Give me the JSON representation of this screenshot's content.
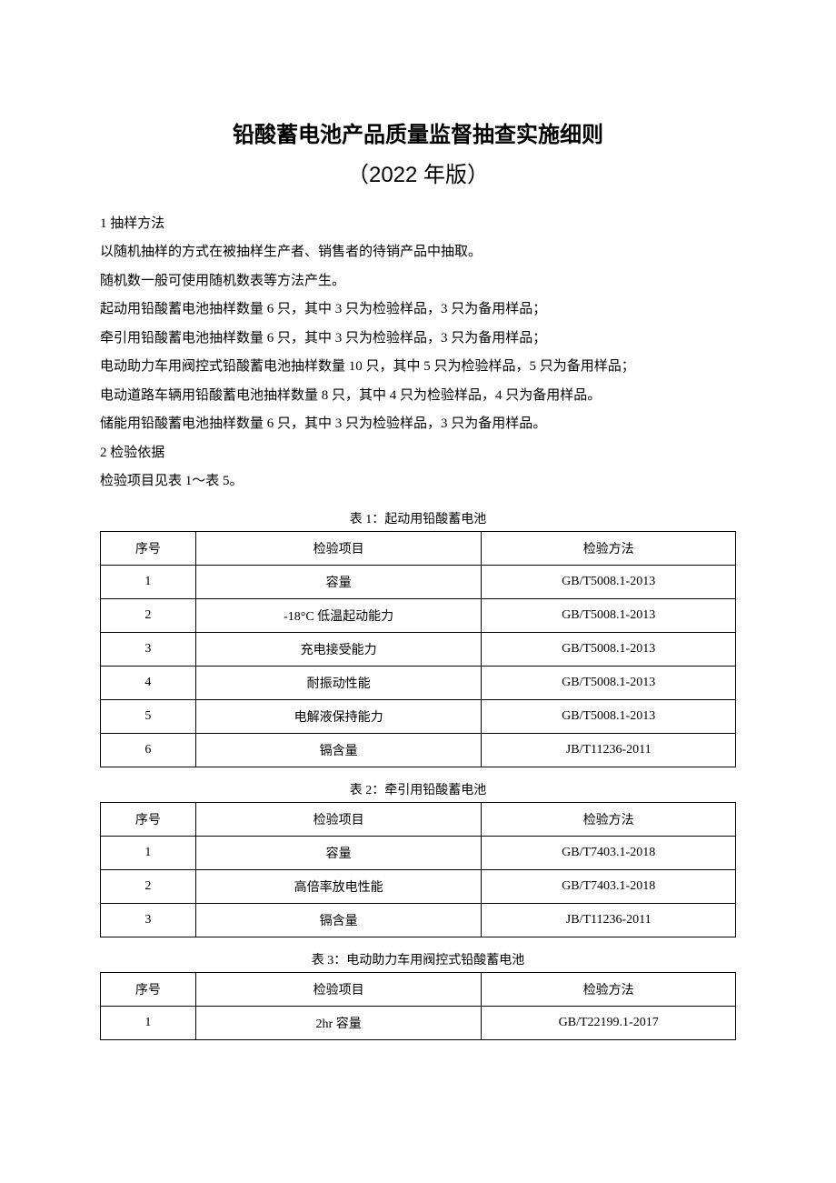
{
  "title": "铅酸蓄电池产品质量监督抽查实施细则",
  "subtitle": "（2022 年版）",
  "section1_heading": "1 抽样方法",
  "body": {
    "p1": "以随机抽样的方式在被抽样生产者、销售者的待销产品中抽取。",
    "p2": "随机数一般可使用随机数表等方法产生。",
    "p3": "起动用铅酸蓄电池抽样数量 6 只，其中 3 只为检验样品，3 只为备用样品；",
    "p4": "牵引用铅酸蓄电池抽样数量 6 只，其中 3 只为检验样品，3 只为备用样品；",
    "p5": "电动助力车用阀控式铅酸蓄电池抽样数量 10 只，其中 5 只为检验样品，5 只为备用样品；",
    "p6": "电动道路车辆用铅酸蓄电池抽样数量 8 只，其中 4 只为检验样品，4 只为备用样品。",
    "p7": "储能用铅酸蓄电池抽样数量 6 只，其中 3 只为检验样品，3 只为备用样品。"
  },
  "section2_heading": "2 检验依据",
  "section2_body": "检验项目见表 1～表 5。",
  "tables": {
    "headers": {
      "seq": "序号",
      "item": "检验项目",
      "method": "检验方法"
    },
    "t1": {
      "caption": "表 1：起动用铅酸蓄电池",
      "rows": [
        {
          "seq": "1",
          "item": "容量",
          "method": "GB/T5008.1-2013"
        },
        {
          "seq": "2",
          "item": "-18°C 低温起动能力",
          "method": "GB/T5008.1-2013"
        },
        {
          "seq": "3",
          "item": "充电接受能力",
          "method": "GB/T5008.1-2013"
        },
        {
          "seq": "4",
          "item": "耐振动性能",
          "method": "GB/T5008.1-2013"
        },
        {
          "seq": "5",
          "item": "电解液保持能力",
          "method": "GB/T5008.1-2013"
        },
        {
          "seq": "6",
          "item": "镉含量",
          "method": "JB/T11236-2011"
        }
      ]
    },
    "t2": {
      "caption": "表 2：牵引用铅酸蓄电池",
      "rows": [
        {
          "seq": "1",
          "item": "容量",
          "method": "GB/T7403.1-2018"
        },
        {
          "seq": "2",
          "item": "高倍率放电性能",
          "method": "GB/T7403.1-2018"
        },
        {
          "seq": "3",
          "item": "镉含量",
          "method": "JB/T11236-2011"
        }
      ]
    },
    "t3": {
      "caption": "表 3：电动助力车用阀控式铅酸蓄电池",
      "rows": [
        {
          "seq": "1",
          "item": "2hr 容量",
          "method": "GB/T22199.1-2017"
        }
      ]
    }
  }
}
